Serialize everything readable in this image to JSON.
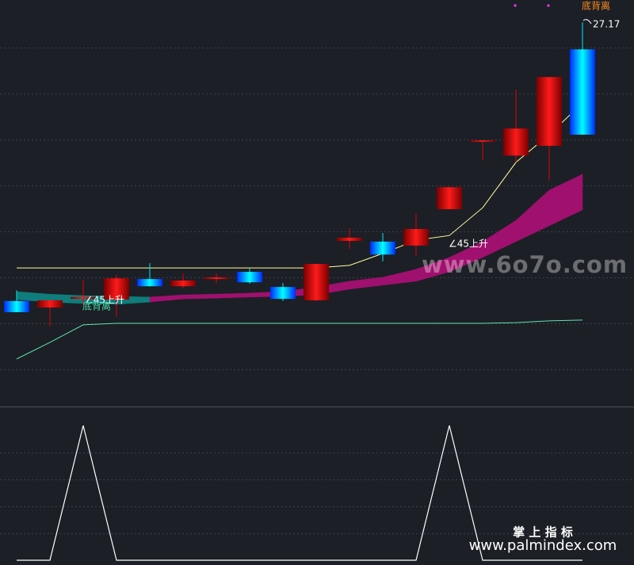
{
  "chart_data": {
    "type": "candlestick",
    "ylim": [
      16.5,
      27.79
    ],
    "ygrid": [
      26.47,
      25.19,
      23.91,
      22.64,
      21.36,
      20.09,
      18.81,
      17.53
    ],
    "up_gradient": [
      "#7a0000",
      "#ff1a1a",
      "#7a0000"
    ],
    "down_gradient": [
      "#0028ff",
      "#00ffff",
      "#0028ff"
    ],
    "up_wick": "#e00000",
    "down_wick": "#00e5ff",
    "candles": [
      {
        "open": 19.43,
        "high": 19.73,
        "low": 19.12,
        "close": 19.12
      },
      {
        "open": 19.25,
        "high": 19.45,
        "low": 18.72,
        "close": 19.45
      },
      {
        "open": 19.49,
        "high": 20.02,
        "low": 19.32,
        "close": 19.54
      },
      {
        "open": 19.47,
        "high": 20.17,
        "low": 18.99,
        "close": 20.06
      },
      {
        "open": 20.04,
        "high": 20.48,
        "low": 19.84,
        "close": 19.84
      },
      {
        "open": 19.84,
        "high": 20.2,
        "low": 19.78,
        "close": 20.0
      },
      {
        "open": 20.04,
        "high": 20.2,
        "low": 19.93,
        "close": 20.09
      },
      {
        "open": 20.24,
        "high": 20.33,
        "low": 19.91,
        "close": 19.95
      },
      {
        "open": 19.82,
        "high": 19.93,
        "low": 19.43,
        "close": 19.49
      },
      {
        "open": 19.45,
        "high": 20.46,
        "low": 19.43,
        "close": 20.46
      },
      {
        "open": 21.1,
        "high": 21.45,
        "low": 20.88,
        "close": 21.19
      },
      {
        "open": 21.08,
        "high": 21.32,
        "low": 20.53,
        "close": 20.72
      },
      {
        "open": 20.97,
        "high": 21.85,
        "low": 20.68,
        "close": 21.43
      },
      {
        "open": 21.98,
        "high": 22.59,
        "low": 21.98,
        "close": 22.59
      },
      {
        "open": 23.85,
        "high": 23.89,
        "low": 23.34,
        "close": 23.89
      },
      {
        "open": 23.47,
        "high": 25.3,
        "low": 23.28,
        "close": 24.22
      },
      {
        "open": 23.74,
        "high": 25.65,
        "low": 22.77,
        "close": 25.65
      },
      {
        "open": 26.42,
        "high": 27.17,
        "low": 24.05,
        "close": 24.05
      }
    ],
    "band": {
      "colors": [
        "#0e7d7b",
        "#a0106e"
      ],
      "upper": [
        19.69,
        19.62,
        19.58,
        19.56,
        19.54,
        19.6,
        19.62,
        19.65,
        19.69,
        19.82,
        19.98,
        20.09,
        20.31,
        20.64,
        21.08,
        21.67,
        22.51,
        22.95
      ],
      "lower": [
        19.47,
        19.4,
        19.36,
        19.34,
        19.4,
        19.49,
        19.51,
        19.54,
        19.56,
        19.6,
        19.76,
        19.87,
        19.98,
        20.24,
        20.64,
        21.08,
        21.52,
        21.96
      ]
    },
    "lines": [
      {
        "color": "#ffff99",
        "values": [
          20.35,
          20.35,
          20.35,
          20.35,
          20.35,
          20.35,
          20.35,
          20.35,
          20.35,
          20.35,
          20.42,
          20.75,
          21.12,
          21.25,
          22.02,
          23.28,
          24.05,
          24.93
        ]
      },
      {
        "color": "#5fe0b0",
        "values": [
          17.82,
          18.28,
          18.77,
          18.81,
          18.81,
          18.81,
          18.81,
          18.81,
          18.81,
          18.81,
          18.81,
          18.81,
          18.81,
          18.81,
          18.81,
          18.83,
          18.88,
          18.9
        ]
      }
    ],
    "annotations": [
      "∠45上升",
      "底背离",
      "∠45上升",
      "底背离"
    ],
    "indicator": {
      "color": "#ffffff",
      "ylim": [
        0,
        1
      ],
      "ygrid": [
        0.2,
        0.4,
        0.6,
        0.8
      ],
      "values": [
        0,
        0,
        1,
        0,
        0,
        0,
        0,
        0,
        0,
        0,
        0,
        0,
        0,
        1,
        0,
        0,
        0,
        0
      ]
    },
    "watermarks": [
      "www.6o7o.com",
      "掌 上 指 标",
      "www.palmindex.com"
    ]
  }
}
